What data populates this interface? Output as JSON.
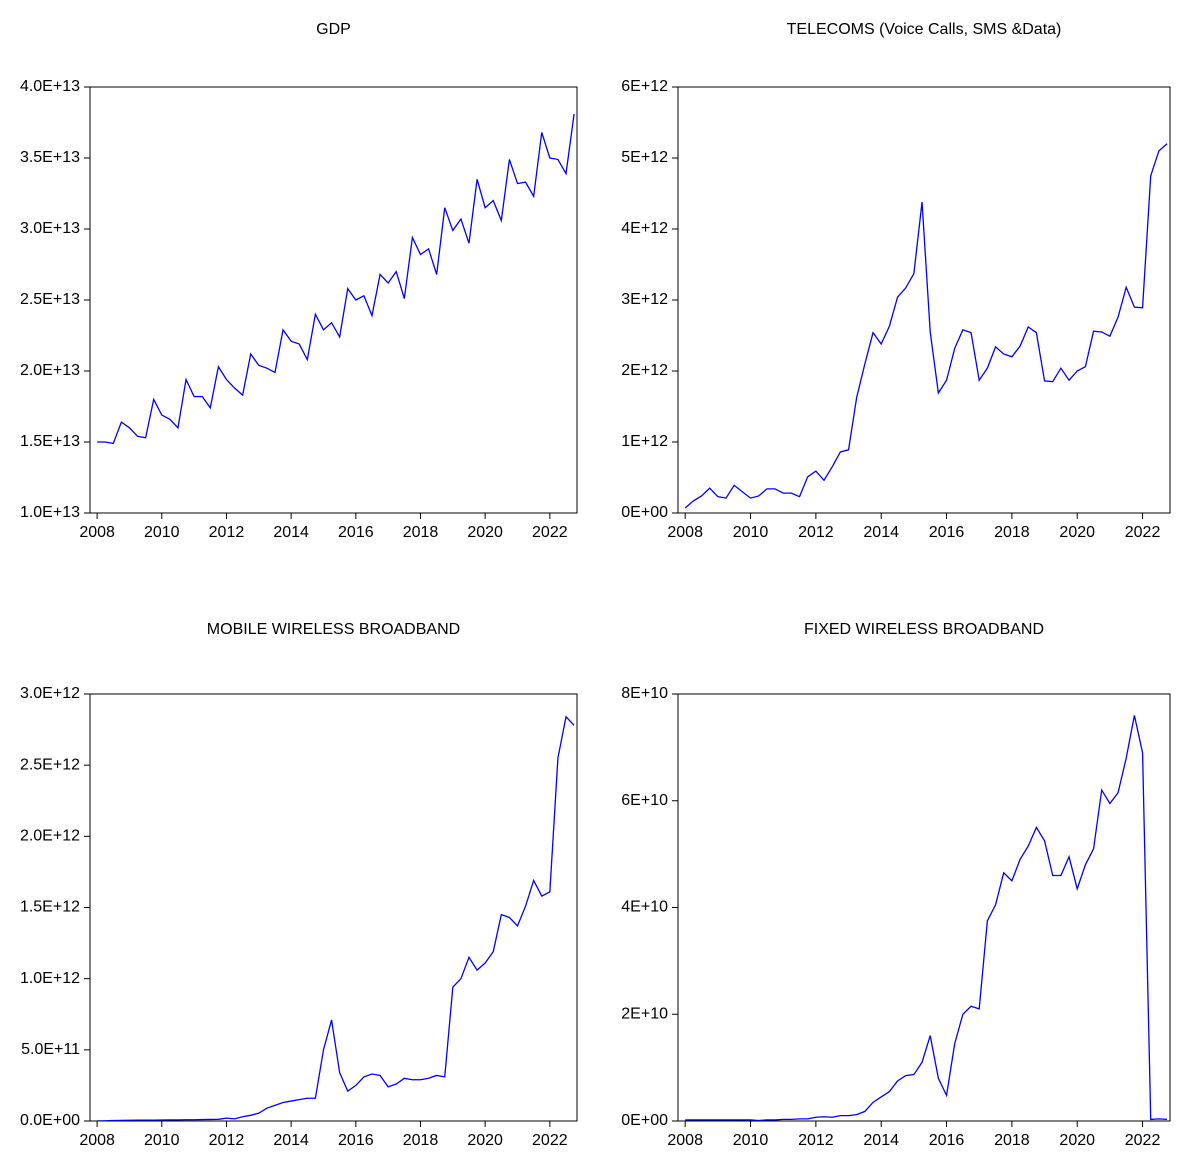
{
  "chart_data": [
    {
      "type": "line",
      "title": "GDP",
      "color": "#0000ff",
      "x": [
        2008,
        2008.25,
        2008.5,
        2008.75,
        2009,
        2009.25,
        2009.5,
        2009.75,
        2010,
        2010.25,
        2010.5,
        2010.75,
        2011,
        2011.25,
        2011.5,
        2011.75,
        2012,
        2012.25,
        2012.5,
        2012.75,
        2013,
        2013.25,
        2013.5,
        2013.75,
        2014,
        2014.25,
        2014.5,
        2014.75,
        2015,
        2015.25,
        2015.5,
        2015.75,
        2016,
        2016.25,
        2016.5,
        2016.75,
        2017,
        2017.25,
        2017.5,
        2017.75,
        2018,
        2018.25,
        2018.5,
        2018.75,
        2019,
        2019.25,
        2019.5,
        2019.75,
        2020,
        2020.25,
        2020.5,
        2020.75,
        2021,
        2021.25,
        2021.5,
        2021.75,
        2022,
        2022.25,
        2022.5,
        2022.75
      ],
      "values": [
        15000000000000.0,
        15000000000000.0,
        14900000000000.0,
        16400000000000.0,
        16000000000000.0,
        15400000000000.0,
        15300000000000.0,
        18000000000000.0,
        16900000000000.0,
        16600000000000.0,
        16000000000000.0,
        19400000000000.0,
        18200000000000.0,
        18200000000000.0,
        17400000000000.0,
        20300000000000.0,
        19400000000000.0,
        18800000000000.0,
        18300000000000.0,
        21200000000000.0,
        20400000000000.0,
        20200000000000.0,
        19900000000000.0,
        22900000000000.0,
        22100000000000.0,
        21900000000000.0,
        20800000000000.0,
        24000000000000.0,
        22900000000000.0,
        23400000000000.0,
        22400000000000.0,
        25800000000000.0,
        25000000000000.0,
        25300000000000.0,
        23900000000000.0,
        26800000000000.0,
        26200000000000.0,
        27000000000000.0,
        25100000000000.0,
        29400000000000.0,
        28200000000000.0,
        28600000000000.0,
        26800000000000.0,
        31500000000000.0,
        29900000000000.0,
        30700000000000.0,
        29000000000000.0,
        33500000000000.0,
        31500000000000.0,
        32000000000000.0,
        30600000000000.0,
        34900000000000.0,
        33200000000000.0,
        33300000000000.0,
        32300000000000.0,
        36800000000000.0,
        35000000000000.0,
        34900000000000.0,
        33900000000000.0,
        38100000000000.0
      ],
      "xlim": [
        2007.78,
        2022.84
      ],
      "xticks": [
        2008,
        2010,
        2012,
        2014,
        2016,
        2018,
        2020,
        2022
      ],
      "ylim": [
        10000000000000.0,
        40000000000000.0
      ],
      "yticks": [
        {
          "value": 10000000000000.0,
          "label": "1.0E+13"
        },
        {
          "value": 15000000000000.0,
          "label": "1.5E+13"
        },
        {
          "value": 20000000000000.0,
          "label": "2.0E+13"
        },
        {
          "value": 25000000000000.0,
          "label": "2.5E+13"
        },
        {
          "value": 30000000000000.0,
          "label": "3.0E+13"
        },
        {
          "value": 35000000000000.0,
          "label": "3.5E+13"
        },
        {
          "value": 40000000000000.0,
          "label": "4.0E+13"
        }
      ]
    },
    {
      "type": "line",
      "title": "TELECOMS (Voice Calls, SMS &Data)",
      "color": "#0000ff",
      "x": [
        2008,
        2008.25,
        2008.5,
        2008.75,
        2009,
        2009.25,
        2009.5,
        2009.75,
        2010,
        2010.25,
        2010.5,
        2010.75,
        2011,
        2011.25,
        2011.5,
        2011.75,
        2012,
        2012.25,
        2012.5,
        2012.75,
        2013,
        2013.25,
        2013.5,
        2013.75,
        2014,
        2014.25,
        2014.5,
        2014.75,
        2015,
        2015.25,
        2015.5,
        2015.75,
        2016,
        2016.25,
        2016.5,
        2016.75,
        2017,
        2017.25,
        2017.5,
        2017.75,
        2018,
        2018.25,
        2018.5,
        2018.75,
        2019,
        2019.25,
        2019.5,
        2019.75,
        2020,
        2020.25,
        2020.5,
        2020.75,
        2021,
        2021.25,
        2021.5,
        2021.75,
        2022,
        2022.25,
        2022.5,
        2022.75
      ],
      "values": [
        70000000000.0,
        170000000000.0,
        240000000000.0,
        350000000000.0,
        230000000000.0,
        210000000000.0,
        390000000000.0,
        300000000000.0,
        210000000000.0,
        240000000000.0,
        340000000000.0,
        340000000000.0,
        280000000000.0,
        280000000000.0,
        230000000000.0,
        510000000000.0,
        590000000000.0,
        460000000000.0,
        650000000000.0,
        860000000000.0,
        890000000000.0,
        1630000000000.0,
        2100000000000.0,
        2540000000000.0,
        2380000000000.0,
        2630000000000.0,
        3040000000000.0,
        3170000000000.0,
        3370000000000.0,
        4380000000000.0,
        2550000000000.0,
        1690000000000.0,
        1870000000000.0,
        2320000000000.0,
        2580000000000.0,
        2540000000000.0,
        1870000000000.0,
        2040000000000.0,
        2340000000000.0,
        2240000000000.0,
        2200000000000.0,
        2350000000000.0,
        2620000000000.0,
        2540000000000.0,
        1860000000000.0,
        1850000000000.0,
        2040000000000.0,
        1870000000000.0,
        2000000000000.0,
        2060000000000.0,
        2560000000000.0,
        2550000000000.0,
        2490000000000.0,
        2760000000000.0,
        3180000000000.0,
        2900000000000.0,
        2890000000000.0,
        4750000000000.0,
        5100000000000.0,
        5200000000000.0
      ],
      "xlim": [
        2007.78,
        2022.84
      ],
      "xticks": [
        2008,
        2010,
        2012,
        2014,
        2016,
        2018,
        2020,
        2022
      ],
      "ylim": [
        0,
        6000000000000.0
      ],
      "yticks": [
        {
          "value": 0,
          "label": "0E+00"
        },
        {
          "value": 1000000000000.0,
          "label": "1E+12"
        },
        {
          "value": 2000000000000.0,
          "label": "2E+12"
        },
        {
          "value": 3000000000000.0,
          "label": "3E+12"
        },
        {
          "value": 4000000000000.0,
          "label": "4E+12"
        },
        {
          "value": 5000000000000.0,
          "label": "5E+12"
        },
        {
          "value": 6000000000000.0,
          "label": "6E+12"
        }
      ]
    },
    {
      "type": "line",
      "title": "MOBILE  WIRELESS BROADBAND",
      "color": "#0000ff",
      "x": [
        2008,
        2008.25,
        2008.5,
        2008.75,
        2009,
        2009.25,
        2009.5,
        2009.75,
        2010,
        2010.25,
        2010.5,
        2010.75,
        2011,
        2011.25,
        2011.5,
        2011.75,
        2012,
        2012.25,
        2012.5,
        2012.75,
        2013,
        2013.25,
        2013.5,
        2013.75,
        2014,
        2014.25,
        2014.5,
        2014.75,
        2015,
        2015.25,
        2015.5,
        2015.75,
        2016,
        2016.25,
        2016.5,
        2016.75,
        2017,
        2017.25,
        2017.5,
        2017.75,
        2018,
        2018.25,
        2018.5,
        2018.75,
        2019,
        2019.25,
        2019.5,
        2019.75,
        2020,
        2020.25,
        2020.5,
        2020.75,
        2021,
        2021.25,
        2021.5,
        2021.75,
        2022,
        2022.25,
        2022.5,
        2022.75
      ],
      "values": [
        1000000000.0,
        2000000000.0,
        3000000000.0,
        4000000000.0,
        5000000000.0,
        6000000000.0,
        6000000000.0,
        6000000000.0,
        7000000000.0,
        8000000000.0,
        8000000000.0,
        9000000000.0,
        9000000000.0,
        10000000000.0,
        11000000000.0,
        12000000000.0,
        20000000000.0,
        15000000000.0,
        30000000000.0,
        40000000000.0,
        55000000000.0,
        90000000000.0,
        110000000000.0,
        130000000000.0,
        140000000000.0,
        150000000000.0,
        160000000000.0,
        160000000000.0,
        500000000000.0,
        710000000000.0,
        340000000000.0,
        210000000000.0,
        250000000000.0,
        310000000000.0,
        330000000000.0,
        320000000000.0,
        240000000000.0,
        260000000000.0,
        300000000000.0,
        290000000000.0,
        290000000000.0,
        300000000000.0,
        320000000000.0,
        310000000000.0,
        940000000000.0,
        1000000000000.0,
        1150000000000.0,
        1060000000000.0,
        1110000000000.0,
        1190000000000.0,
        1450000000000.0,
        1430000000000.0,
        1370000000000.0,
        1510000000000.0,
        1690000000000.0,
        1580000000000.0,
        1610000000000.0,
        2550000000000.0,
        2840000000000.0,
        2780000000000.0
      ],
      "xlim": [
        2007.78,
        2022.84
      ],
      "xticks": [
        2008,
        2010,
        2012,
        2014,
        2016,
        2018,
        2020,
        2022
      ],
      "ylim": [
        0,
        3000000000000.0
      ],
      "yticks": [
        {
          "value": 0,
          "label": "0.0E+00"
        },
        {
          "value": 500000000000.0,
          "label": "5.0E+11"
        },
        {
          "value": 1000000000000.0,
          "label": "1.0E+12"
        },
        {
          "value": 1500000000000.0,
          "label": "1.5E+12"
        },
        {
          "value": 2000000000000.0,
          "label": "2.0E+12"
        },
        {
          "value": 2500000000000.0,
          "label": "2.5E+12"
        },
        {
          "value": 3000000000000.0,
          "label": "3.0E+12"
        }
      ]
    },
    {
      "type": "line",
      "title": "FIXED WIRELESS BROADBAND",
      "color": "#0000ff",
      "x": [
        2008,
        2008.25,
        2008.5,
        2008.75,
        2009,
        2009.25,
        2009.5,
        2009.75,
        2010,
        2010.25,
        2010.5,
        2010.75,
        2011,
        2011.25,
        2011.5,
        2011.75,
        2012,
        2012.25,
        2012.5,
        2012.75,
        2013,
        2013.25,
        2013.5,
        2013.75,
        2014,
        2014.25,
        2014.5,
        2014.75,
        2015,
        2015.25,
        2015.5,
        2015.75,
        2016,
        2016.25,
        2016.5,
        2016.75,
        2017,
        2017.25,
        2017.5,
        2017.75,
        2018,
        2018.25,
        2018.5,
        2018.75,
        2019,
        2019.25,
        2019.5,
        2019.75,
        2020,
        2020.25,
        2020.5,
        2020.75,
        2021,
        2021.25,
        2021.5,
        2021.75,
        2022,
        2022.25,
        2022.5,
        2022.75
      ],
      "values": [
        200000000.0,
        200000000.0,
        200000000.0,
        200000000.0,
        200000000.0,
        200000000.0,
        200000000.0,
        200000000.0,
        200000000.0,
        100000000.0,
        200000000.0,
        200000000.0,
        300000000.0,
        300000000.0,
        400000000.0,
        400000000.0,
        700000000.0,
        800000000.0,
        700000000.0,
        1000000000.0,
        1000000000.0,
        1200000000.0,
        1800000000.0,
        3500000000.0,
        4500000000.0,
        5500000000.0,
        7500000000.0,
        8500000000.0,
        8700000000.0,
        11000000000.0,
        16000000000.0,
        8000000000.0,
        4800000000.0,
        14500000000.0,
        20000000000.0,
        21500000000.0,
        21000000000.0,
        37500000000.0,
        40500000000.0,
        46500000000.0,
        45000000000.0,
        49000000000.0,
        51500000000.0,
        55000000000.0,
        52500000000.0,
        46000000000.0,
        46000000000.0,
        49500000000.0,
        43500000000.0,
        48000000000.0,
        51000000000.0,
        62000000000.0,
        59500000000.0,
        61500000000.0,
        68000000000.0,
        76000000000.0,
        69000000000.0,
        300000000.0,
        400000000.0,
        300000000.0
      ],
      "xlim": [
        2007.78,
        2022.84
      ],
      "xticks": [
        2008,
        2010,
        2012,
        2014,
        2016,
        2018,
        2020,
        2022
      ],
      "ylim": [
        0,
        80000000000.0
      ],
      "yticks": [
        {
          "value": 0,
          "label": "0E+00"
        },
        {
          "value": 20000000000.0,
          "label": "2E+10"
        },
        {
          "value": 40000000000.0,
          "label": "4E+10"
        },
        {
          "value": 60000000000.0,
          "label": "6E+10"
        },
        {
          "value": 80000000000.0,
          "label": "8E+10"
        }
      ]
    }
  ]
}
